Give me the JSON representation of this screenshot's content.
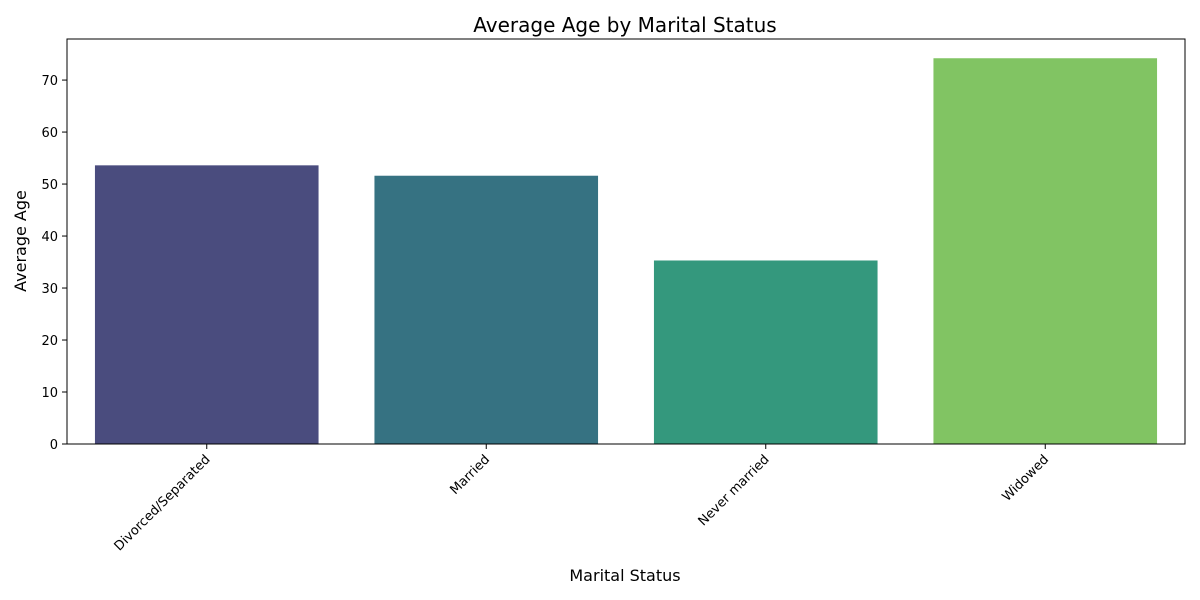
{
  "chart_data": {
    "type": "bar",
    "title": "Average Age by Marital Status",
    "xlabel": "Marital Status",
    "ylabel": "Average Age",
    "categories": [
      "Divorced/Separated",
      "Married",
      "Never married",
      "Widowed"
    ],
    "values": [
      53.6,
      51.6,
      35.3,
      74.2
    ],
    "colors": [
      "#4a4c7e",
      "#367282",
      "#34987d",
      "#81c463"
    ],
    "ylim": [
      0,
      77.9
    ],
    "yticks": [
      0,
      10,
      20,
      30,
      40,
      50,
      60,
      70
    ],
    "xtick_rotation": 45,
    "grid": false,
    "legend": false
  }
}
